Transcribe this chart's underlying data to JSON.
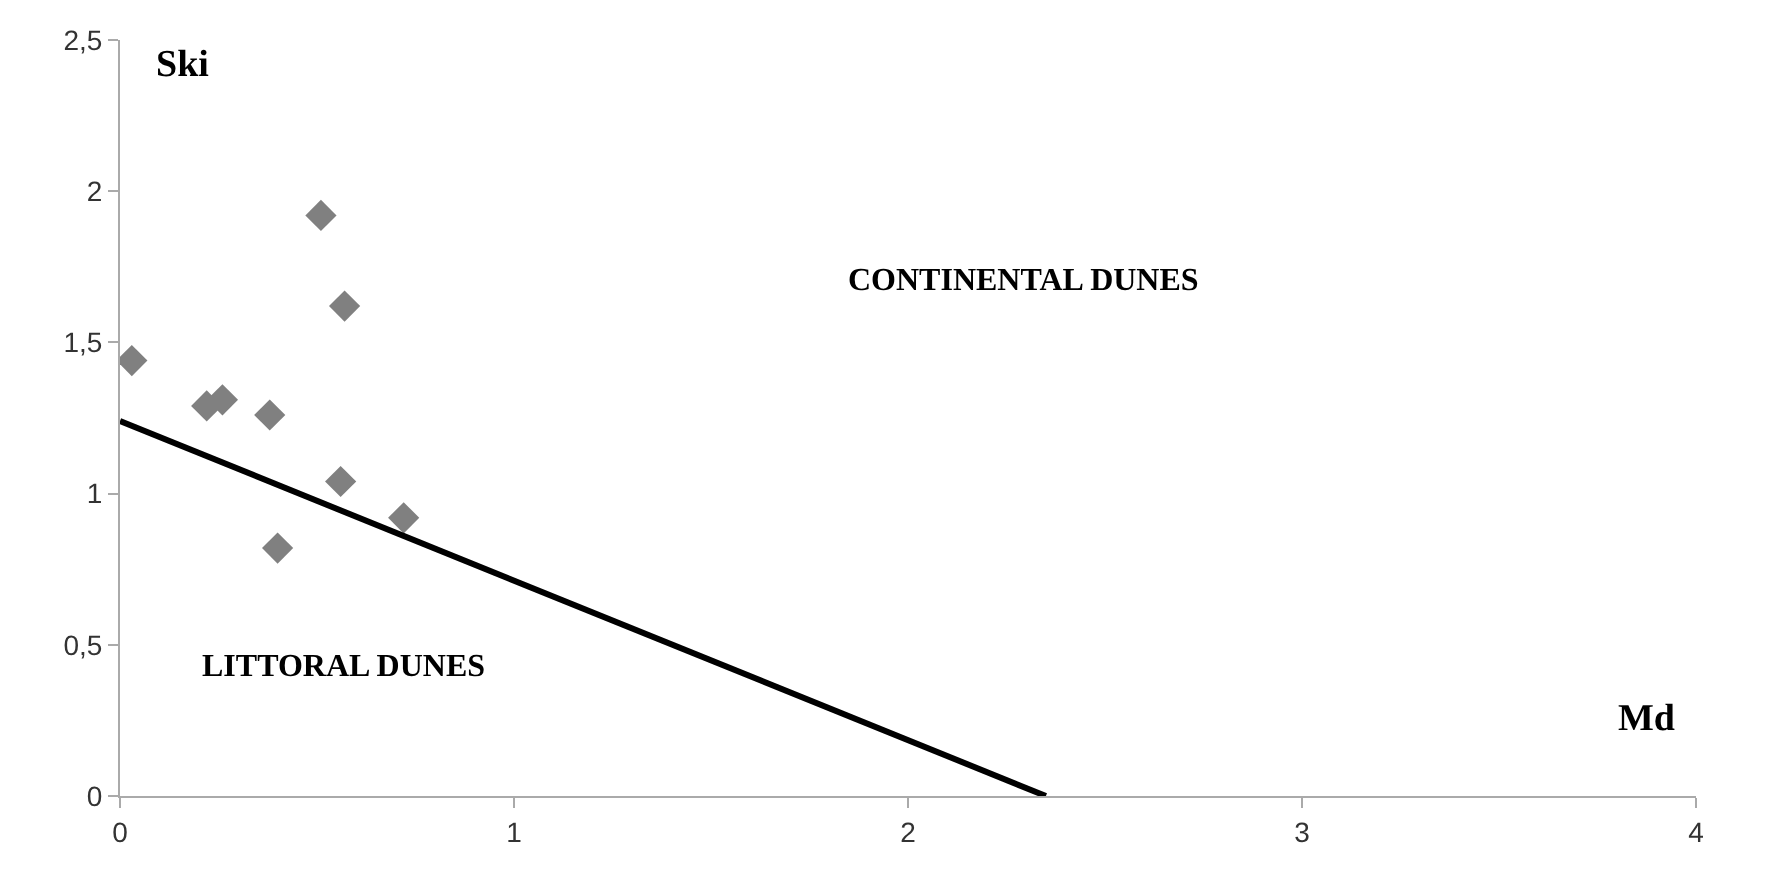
{
  "chart_data": {
    "type": "scatter",
    "xlabel": "Md",
    "ylabel": "Ski",
    "annotations": [
      "CONTINENTAL DUNES",
      "LITTORAL DUNES"
    ],
    "xlim": [
      0,
      4
    ],
    "xticks": [
      0,
      1,
      2,
      3,
      4
    ],
    "ylim": [
      0,
      2.5
    ],
    "yticks": [
      0,
      {
        "value": 0.5,
        "label": "0,5"
      },
      1,
      {
        "value": 1.5,
        "label": "1,5"
      },
      2,
      {
        "value": 2.5,
        "label": "2,5"
      }
    ],
    "series": [
      {
        "marker": "diamond",
        "color": "#808080",
        "x": [
          0.03,
          0.51,
          0.57,
          0.22,
          0.26,
          0.38,
          0.56,
          0.72,
          0.4
        ],
        "values": [
          1.44,
          1.92,
          1.62,
          1.29,
          1.31,
          1.26,
          1.04,
          0.92,
          0.82
        ]
      },
      {
        "type": "line",
        "marker": "none",
        "line_style": "solid",
        "color": "#000000",
        "x": [
          0,
          2.35
        ],
        "values": [
          1.24,
          0
        ]
      }
    ]
  }
}
